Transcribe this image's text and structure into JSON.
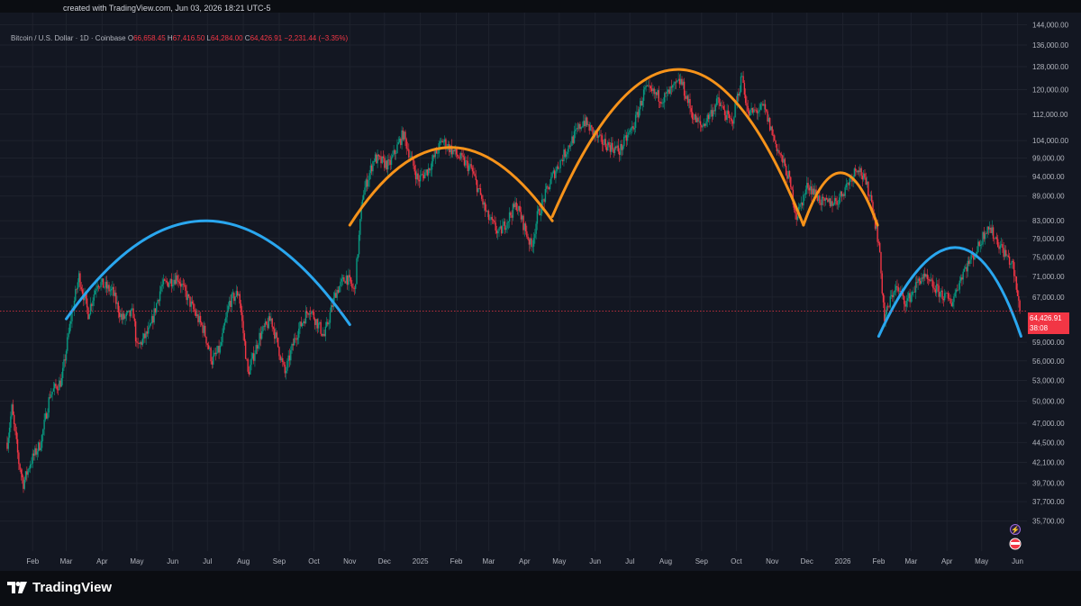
{
  "header": {
    "created_text": "created with TradingView.com, Jun 03, 2026 18:21 UTC-5"
  },
  "legend": {
    "symbol": "Bitcoin / U.S. Dollar · 1D · Coinbase",
    "open_key": "O",
    "open": "66,658.45",
    "high_key": "H",
    "high": "67,416.50",
    "low_key": "L",
    "low": "64,284.00",
    "close_key": "C",
    "close": "64,426.91",
    "change": "−2,231.44 (−3.35%)"
  },
  "price_tag": {
    "price": "64,426.91",
    "countdown": "38:08"
  },
  "footer": {
    "brand": "TradingView"
  },
  "colors": {
    "background": "#131722",
    "up": "#089981",
    "down": "#f23645",
    "arc_blue": "#2aa7ef",
    "arc_orange": "#f7931a"
  },
  "chart_data": {
    "type": "candlestick",
    "title": "Bitcoin / U.S. Dollar · 1D · Coinbase",
    "y_scale": "log",
    "ylim": [
      34000,
      146000
    ],
    "x_range": [
      "2024-01-10",
      "2026-06-06"
    ],
    "y_ticks": [
      "144,000.00",
      "136,000.00",
      "128,000.00",
      "120,000.00",
      "112,000.00",
      "104,000.00",
      "99,000.00",
      "94,000.00",
      "89,000.00",
      "83,000.00",
      "79,000.00",
      "75,000.00",
      "71,000.00",
      "67,000.00",
      "59,000.00",
      "56,000.00",
      "53,000.00",
      "50,000.00",
      "47,000.00",
      "44,500.00",
      "42,100.00",
      "39,700.00",
      "37,700.00",
      "35,700.00"
    ],
    "x_ticks": [
      {
        "label": "Feb",
        "date": "2024-02-01"
      },
      {
        "label": "Mar",
        "date": "2024-03-01"
      },
      {
        "label": "Apr",
        "date": "2024-04-01"
      },
      {
        "label": "May",
        "date": "2024-05-01"
      },
      {
        "label": "Jun",
        "date": "2024-06-01"
      },
      {
        "label": "Jul",
        "date": "2024-07-01"
      },
      {
        "label": "Aug",
        "date": "2024-08-01"
      },
      {
        "label": "Sep",
        "date": "2024-09-01"
      },
      {
        "label": "Oct",
        "date": "2024-10-01"
      },
      {
        "label": "Nov",
        "date": "2024-11-01"
      },
      {
        "label": "Dec",
        "date": "2024-12-01"
      },
      {
        "label": "2025",
        "date": "2025-01-01"
      },
      {
        "label": "Feb",
        "date": "2025-02-01"
      },
      {
        "label": "Mar",
        "date": "2025-03-01"
      },
      {
        "label": "Apr",
        "date": "2025-04-01"
      },
      {
        "label": "May",
        "date": "2025-05-01"
      },
      {
        "label": "Jun",
        "date": "2025-06-01"
      },
      {
        "label": "Jul",
        "date": "2025-07-01"
      },
      {
        "label": "Aug",
        "date": "2025-08-01"
      },
      {
        "label": "Sep",
        "date": "2025-09-01"
      },
      {
        "label": "Oct",
        "date": "2025-10-01"
      },
      {
        "label": "Nov",
        "date": "2025-11-01"
      },
      {
        "label": "Dec",
        "date": "2025-12-01"
      },
      {
        "label": "2026",
        "date": "2026-01-01"
      },
      {
        "label": "Feb",
        "date": "2026-02-01"
      },
      {
        "label": "Mar",
        "date": "2026-03-01"
      },
      {
        "label": "Apr",
        "date": "2026-04-01"
      },
      {
        "label": "May",
        "date": "2026-05-01"
      },
      {
        "label": "Jun",
        "date": "2026-06-01"
      }
    ],
    "price_path": [
      [
        "2024-01-10",
        44500
      ],
      [
        "2024-01-14",
        49000
      ],
      [
        "2024-01-20",
        42100
      ],
      [
        "2024-01-24",
        39700
      ],
      [
        "2024-01-30",
        42100
      ],
      [
        "2024-02-08",
        44500
      ],
      [
        "2024-02-16",
        51000
      ],
      [
        "2024-02-26",
        53000
      ],
      [
        "2024-03-05",
        63000
      ],
      [
        "2024-03-12",
        71000
      ],
      [
        "2024-03-20",
        64000
      ],
      [
        "2024-03-28",
        70000
      ],
      [
        "2024-04-10",
        68000
      ],
      [
        "2024-04-18",
        63000
      ],
      [
        "2024-04-28",
        64000
      ],
      [
        "2024-05-01",
        58000
      ],
      [
        "2024-05-12",
        61000
      ],
      [
        "2024-05-22",
        69000
      ],
      [
        "2024-06-05",
        71000
      ],
      [
        "2024-06-18",
        65000
      ],
      [
        "2024-06-28",
        61000
      ],
      [
        "2024-07-05",
        56000
      ],
      [
        "2024-07-12",
        58000
      ],
      [
        "2024-07-20",
        66000
      ],
      [
        "2024-07-28",
        68000
      ],
      [
        "2024-08-05",
        54000
      ],
      [
        "2024-08-15",
        60000
      ],
      [
        "2024-08-25",
        63000
      ],
      [
        "2024-09-06",
        54000
      ],
      [
        "2024-09-15",
        60000
      ],
      [
        "2024-09-27",
        65000
      ],
      [
        "2024-10-10",
        60000
      ],
      [
        "2024-10-20",
        68000
      ],
      [
        "2024-10-29",
        71000
      ],
      [
        "2024-11-05",
        68000
      ],
      [
        "2024-11-12",
        89000
      ],
      [
        "2024-11-22",
        99000
      ],
      [
        "2024-12-05",
        97000
      ],
      [
        "2024-12-17",
        106000
      ],
      [
        "2024-12-30",
        93000
      ],
      [
        "2025-01-08",
        96000
      ],
      [
        "2025-01-20",
        104000
      ],
      [
        "2025-02-01",
        100000
      ],
      [
        "2025-02-14",
        96000
      ],
      [
        "2025-02-28",
        84000
      ],
      [
        "2025-03-10",
        80000
      ],
      [
        "2025-03-25",
        87000
      ],
      [
        "2025-04-07",
        77000
      ],
      [
        "2025-04-12",
        84000
      ],
      [
        "2025-04-25",
        94000
      ],
      [
        "2025-05-10",
        103000
      ],
      [
        "2025-05-22",
        110000
      ],
      [
        "2025-06-05",
        104000
      ],
      [
        "2025-06-22",
        101000
      ],
      [
        "2025-07-05",
        109000
      ],
      [
        "2025-07-14",
        120000
      ],
      [
        "2025-07-30",
        117000
      ],
      [
        "2025-08-14",
        123000
      ],
      [
        "2025-08-25",
        111000
      ],
      [
        "2025-09-01",
        108000
      ],
      [
        "2025-09-15",
        116000
      ],
      [
        "2025-09-27",
        109000
      ],
      [
        "2025-10-06",
        125000
      ],
      [
        "2025-10-11",
        112000
      ],
      [
        "2025-10-25",
        114000
      ],
      [
        "2025-11-04",
        103000
      ],
      [
        "2025-11-15",
        94000
      ],
      [
        "2025-11-22",
        84000
      ],
      [
        "2025-12-02",
        92000
      ],
      [
        "2025-12-15",
        87000
      ],
      [
        "2025-12-28",
        88000
      ],
      [
        "2026-01-14",
        97000
      ],
      [
        "2026-01-25",
        89000
      ],
      [
        "2026-02-01",
        78000
      ],
      [
        "2026-02-06",
        63000
      ],
      [
        "2026-02-15",
        69000
      ],
      [
        "2026-02-25",
        66000
      ],
      [
        "2026-03-10",
        71000
      ],
      [
        "2026-03-25",
        68000
      ],
      [
        "2026-04-05",
        66000
      ],
      [
        "2026-04-15",
        72000
      ],
      [
        "2026-04-28",
        77000
      ],
      [
        "2026-05-06",
        82000
      ],
      [
        "2026-05-18",
        77000
      ],
      [
        "2026-05-28",
        73000
      ],
      [
        "2026-06-03",
        64426.91
      ]
    ],
    "last_price": 64426.91,
    "annotations": [
      {
        "type": "arc",
        "color": "#2aa7ef",
        "points": [
          [
            "2024-03-01",
            63000
          ],
          [
            "2024-07-01",
            83000
          ],
          [
            "2024-11-01",
            62000
          ]
        ]
      },
      {
        "type": "arc",
        "color": "#f7931a",
        "points": [
          [
            "2024-11-01",
            82000
          ],
          [
            "2025-01-26",
            102000
          ],
          [
            "2025-04-25",
            83000
          ]
        ]
      },
      {
        "type": "arc",
        "color": "#f7931a",
        "points": [
          [
            "2025-04-25",
            84000
          ],
          [
            "2025-08-13",
            127000
          ],
          [
            "2025-11-28",
            82000
          ]
        ]
      },
      {
        "type": "arc",
        "color": "#f7931a",
        "points": [
          [
            "2025-11-28",
            82000
          ],
          [
            "2025-12-30",
            95000
          ],
          [
            "2026-01-31",
            82000
          ]
        ]
      },
      {
        "type": "arc",
        "color": "#2aa7ef",
        "points": [
          [
            "2026-02-01",
            60000
          ],
          [
            "2026-04-08",
            77000
          ],
          [
            "2026-06-04",
            60000
          ]
        ]
      }
    ]
  }
}
